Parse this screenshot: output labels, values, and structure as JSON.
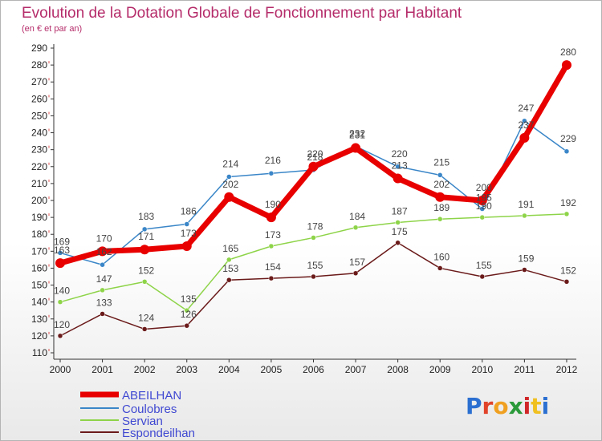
{
  "title": "Evolution de la Dotation Globale de Fonctionnement par Habitant",
  "subtitle": "(en € et par an)",
  "logo": "Proxiti",
  "chart_data": {
    "type": "line",
    "title": "Evolution de la Dotation Globale de Fonctionnement par Habitant",
    "subtitle": "(en € et par an)",
    "xlabel": "",
    "ylabel": "",
    "x": [
      "2000",
      "2001",
      "2002",
      "2003",
      "2004",
      "2005",
      "2006",
      "2007",
      "2008",
      "2009",
      "2010",
      "2011",
      "2012"
    ],
    "yticks": [
      110,
      120,
      130,
      140,
      150,
      160,
      170,
      180,
      190,
      200,
      210,
      220,
      230,
      240,
      250,
      260,
      270,
      280,
      290
    ],
    "ylim": [
      110,
      290
    ],
    "grid": false,
    "legend_position": "bottom-left",
    "series": [
      {
        "name": "ABEILHAN",
        "color": "#e80000",
        "values": [
          163,
          170,
          171,
          173,
          202,
          190,
          220,
          231,
          213,
          202,
          200,
          237,
          280
        ],
        "labels": [
          "163",
          "170",
          "171",
          "173",
          "202",
          "190",
          "220",
          "231",
          "213",
          "202",
          "200",
          "237",
          "280"
        ]
      },
      {
        "name": "Coulobres",
        "color": "#3a86c8",
        "values": [
          169,
          162,
          183,
          186,
          214,
          216,
          218,
          232,
          220,
          215,
          195,
          247,
          229
        ],
        "labels": [
          "169",
          "162",
          "183",
          "186",
          "214",
          "216",
          "218",
          "232",
          "220",
          "215",
          "195",
          "247",
          "229"
        ]
      },
      {
        "name": "Servian",
        "color": "#8ed449",
        "values": [
          140,
          147,
          152,
          135,
          165,
          173,
          178,
          184,
          187,
          189,
          190,
          191,
          192
        ],
        "labels": [
          "140",
          "147",
          "152",
          "135",
          "165",
          "173",
          "178",
          "184",
          "187",
          "189",
          "190",
          "191",
          "192"
        ]
      },
      {
        "name": "Espondeilhan",
        "color": "#6b1a1a",
        "values": [
          120,
          133,
          124,
          126,
          153,
          154,
          155,
          157,
          175,
          160,
          155,
          159,
          152
        ],
        "labels": [
          "120",
          "133",
          "124",
          "126",
          "153",
          "154",
          "155",
          "157",
          "175",
          "160",
          "155",
          "159",
          "152"
        ]
      }
    ]
  }
}
